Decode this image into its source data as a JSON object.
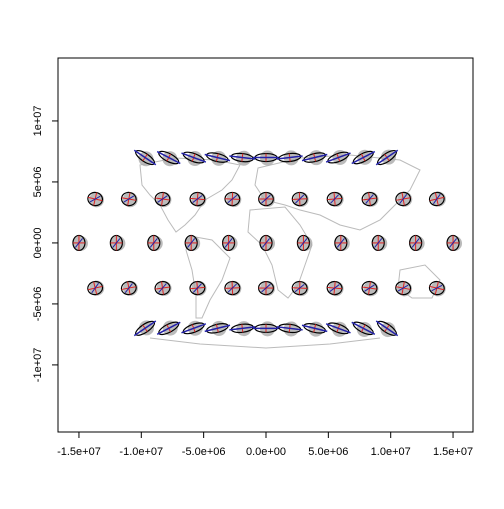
{
  "chart_data": {
    "type": "scatter",
    "xlim": [
      -16680000,
      16600000
    ],
    "ylim": [
      -15500000,
      15160000
    ],
    "xticks": [
      {
        "value": -15000000,
        "label": "-1.5e+07"
      },
      {
        "value": -10000000,
        "label": "-1.0e+07"
      },
      {
        "value": -5000000,
        "label": "-5.0e+06"
      },
      {
        "value": 0,
        "label": "0.0e+00"
      },
      {
        "value": 5000000,
        "label": "5.0e+06"
      },
      {
        "value": 10000000,
        "label": "1.0e+07"
      },
      {
        "value": 15000000,
        "label": "1.5e+07"
      }
    ],
    "yticks": [
      {
        "value": -10000000,
        "label": "-1e+07"
      },
      {
        "value": -5000000,
        "label": "-5e+06"
      },
      {
        "value": 0,
        "label": "0e+00"
      },
      {
        "value": 5000000,
        "label": "5e+06"
      },
      {
        "value": 10000000,
        "label": "1e+07"
      }
    ],
    "x": [
      -9700000,
      -7800000,
      -5800000,
      -3900000,
      -1900000,
      0,
      1900000,
      3900000,
      5800000,
      7800000,
      9700000,
      -13700000,
      -11000000,
      -8300000,
      -5500000,
      -2700000,
      0,
      2700000,
      5500000,
      8300000,
      11000000,
      13700000,
      -15000000,
      -12000000,
      -9000000,
      -6000000,
      -3000000,
      0,
      3000000,
      6000000,
      9000000,
      12000000,
      15000000,
      -13700000,
      -11000000,
      -8300000,
      -5500000,
      -2700000,
      0,
      2700000,
      5500000,
      8300000,
      11000000,
      13700000,
      -9700000,
      -7800000,
      -5800000,
      -3900000,
      -1900000,
      0,
      1900000,
      3900000,
      5800000,
      7800000,
      9700000
    ],
    "y": [
      7000000,
      7000000,
      7000000,
      7000000,
      7000000,
      7000000,
      7000000,
      7000000,
      7000000,
      7000000,
      7000000,
      3600000,
      3600000,
      3600000,
      3600000,
      3600000,
      3600000,
      3600000,
      3600000,
      3600000,
      3600000,
      3600000,
      0,
      0,
      0,
      0,
      0,
      0,
      0,
      0,
      0,
      0,
      0,
      -3700000,
      -3700000,
      -3700000,
      -3700000,
      -3700000,
      -3700000,
      -3700000,
      -3700000,
      -3700000,
      -3700000,
      -3700000,
      -7000000,
      -7000000,
      -7000000,
      -7000000,
      -7000000,
      -7000000,
      -7000000,
      -7000000,
      -7000000,
      -7000000,
      -7000000
    ]
  }
}
